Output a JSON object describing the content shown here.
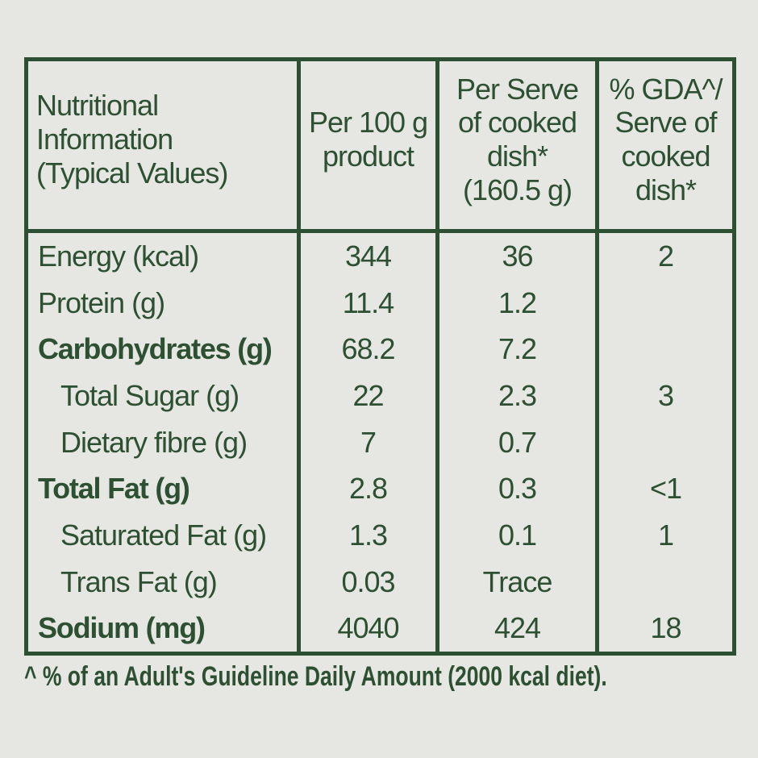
{
  "colors": {
    "background": "#e6e7e3",
    "green": "#2d5032"
  },
  "table": {
    "header": {
      "col1": {
        "lines": [
          "Nutritional",
          "Information",
          "(Typical Values)"
        ]
      },
      "col2": {
        "lines": [
          "Per 100 g",
          "product"
        ]
      },
      "col3": {
        "lines": [
          "Per Serve",
          "of cooked",
          "dish*",
          "(160.5 g)"
        ]
      },
      "col4": {
        "lines": [
          "% GDA^/",
          "Serve of",
          "cooked",
          "dish*"
        ]
      }
    },
    "rows": [
      {
        "label": "Energy (kcal)",
        "per_100g": "344",
        "per_serve": "36",
        "gda": "2"
      },
      {
        "label": "Protein (g)",
        "per_100g": "11.4",
        "per_serve": "1.2",
        "gda": ""
      },
      {
        "label": "Carbohydrates (g)",
        "per_100g": "68.2",
        "per_serve": "7.2",
        "gda": ""
      },
      {
        "label": "Total Sugar (g)",
        "per_100g": "22",
        "per_serve": "2.3",
        "gda": "3"
      },
      {
        "label": "Dietary fibre (g)",
        "per_100g": "7",
        "per_serve": "0.7",
        "gda": ""
      },
      {
        "label": "Total Fat (g)",
        "per_100g": "2.8",
        "per_serve": "0.3",
        "gda": "<1"
      },
      {
        "label": "Saturated Fat (g)",
        "per_100g": "1.3",
        "per_serve": "0.1",
        "gda": "1"
      },
      {
        "label": "Trans Fat (g)",
        "per_100g": "0.03",
        "per_serve": "Trace",
        "gda": ""
      },
      {
        "label": "Sodium (mg)",
        "per_100g": "4040",
        "per_serve": "424",
        "gda": "18"
      }
    ]
  },
  "footnote": "^ % of an Adult's Guideline Daily Amount (2000 kcal diet)."
}
